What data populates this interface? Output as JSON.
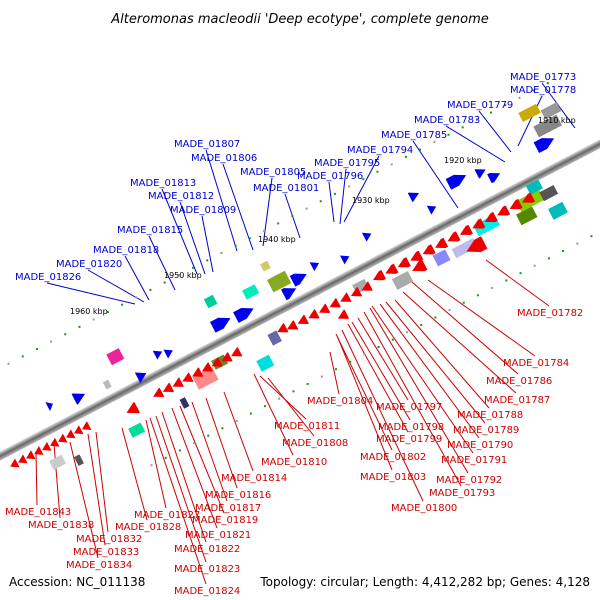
{
  "title": "Alteromonas macleodii 'Deep ecotype', complete genome",
  "footer": {
    "accession": "Accession: NC_011138",
    "summary": "Topology: circular; Length: 4,412,282 bp; Genes: 4,128"
  },
  "colors": {
    "top_strand_label": "#0000cc",
    "bottom_strand_label": "#cc0000",
    "top_strand_arrow": "#0000ee",
    "bottom_strand_arrow": "#ee0000"
  },
  "kbp_markers": [
    "1910 kbp",
    "1920 kbp",
    "1930 kbp",
    "1940 kbp",
    "1950 kbp",
    "1960 kbp"
  ],
  "top_labels": [
    "MADE_01773",
    "MADE_01778",
    "MADE_01779",
    "MADE_01783",
    "MADE_01785",
    "MADE_01794",
    "MADE_01795",
    "MADE_01796",
    "MADE_01801",
    "MADE_01805",
    "MADE_01806",
    "MADE_01807",
    "MADE_01809",
    "MADE_01812",
    "MADE_01813",
    "MADE_01815",
    "MADE_01818",
    "MADE_01820",
    "MADE_01826"
  ],
  "bottom_labels": [
    "MADE_01782",
    "MADE_01784",
    "MADE_01786",
    "MADE_01787",
    "MADE_01788",
    "MADE_01789",
    "MADE_01790",
    "MADE_01791",
    "MADE_01792",
    "MADE_01793",
    "MADE_01797",
    "MADE_01798",
    "MADE_01799",
    "MADE_01800",
    "MADE_01802",
    "MADE_01803",
    "MADE_01804",
    "MADE_01808",
    "MADE_01810",
    "MADE_01811",
    "MADE_01814",
    "MADE_01816",
    "MADE_01817",
    "MADE_01819",
    "MADE_01821",
    "MADE_01822",
    "MADE_01823",
    "MADE_01824",
    "MADE_01827",
    "MADE_01828",
    "MADE_01832",
    "MADE_01833",
    "MADE_01834",
    "MADE_01838",
    "MADE_01843"
  ]
}
